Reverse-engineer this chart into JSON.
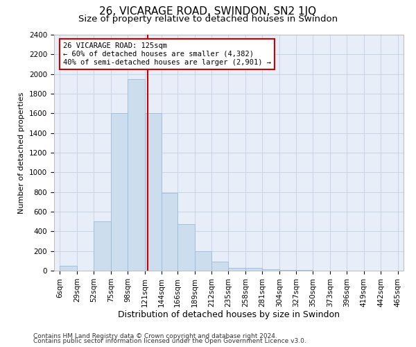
{
  "title": "26, VICARAGE ROAD, SWINDON, SN2 1JQ",
  "subtitle": "Size of property relative to detached houses in Swindon",
  "xlabel": "Distribution of detached houses by size in Swindon",
  "ylabel": "Number of detached properties",
  "footer_line1": "Contains HM Land Registry data © Crown copyright and database right 2024.",
  "footer_line2": "Contains public sector information licensed under the Open Government Licence v3.0.",
  "bar_edges": [
    6,
    29,
    52,
    75,
    98,
    121,
    144,
    166,
    189,
    212,
    235,
    258,
    281,
    304,
    327,
    350,
    373,
    396,
    419,
    442,
    465
  ],
  "bar_labels": [
    "6sqm",
    "29sqm",
    "52sqm",
    "75sqm",
    "98sqm",
    "121sqm",
    "144sqm",
    "166sqm",
    "189sqm",
    "212sqm",
    "235sqm",
    "258sqm",
    "281sqm",
    "304sqm",
    "327sqm",
    "350sqm",
    "373sqm",
    "396sqm",
    "419sqm",
    "442sqm",
    "465sqm"
  ],
  "bar_heights": [
    50,
    0,
    500,
    1600,
    1950,
    1600,
    790,
    470,
    200,
    90,
    30,
    25,
    15,
    8,
    5,
    0,
    0,
    0,
    0,
    0
  ],
  "bar_color": "#ccdded",
  "bar_edgecolor": "#99bbdd",
  "grid_color": "#c8d4e8",
  "bg_color": "#e8eef8",
  "vline_x": 125,
  "vline_color": "#cc0000",
  "annotation_text": "26 VICARAGE ROAD: 125sqm\n← 60% of detached houses are smaller (4,382)\n40% of semi-detached houses are larger (2,901) →",
  "annotation_box_color": "#ffffff",
  "annotation_box_edgecolor": "#cc0000",
  "ylim": [
    0,
    2400
  ],
  "yticks": [
    0,
    200,
    400,
    600,
    800,
    1000,
    1200,
    1400,
    1600,
    1800,
    2000,
    2200,
    2400
  ],
  "title_fontsize": 11,
  "subtitle_fontsize": 9.5,
  "ylabel_fontsize": 8,
  "xlabel_fontsize": 9,
  "tick_fontsize": 7.5,
  "annotation_fontsize": 7.5
}
